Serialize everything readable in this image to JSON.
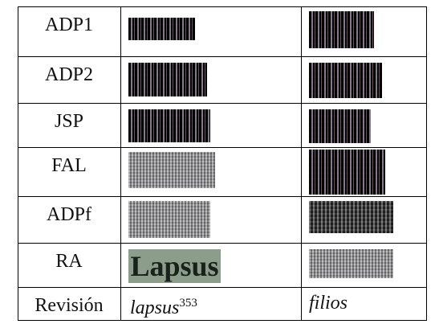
{
  "table": {
    "rows": [
      {
        "label": "ADP1"
      },
      {
        "label": "ADP2"
      },
      {
        "label": "JSP"
      },
      {
        "label": "FAL"
      },
      {
        "label": "ADPf"
      },
      {
        "label": "RA",
        "image_text": "Lapsus"
      },
      {
        "label": "Revisión",
        "left": "lapsus",
        "left_sup": "353",
        "right": "filios"
      }
    ]
  }
}
